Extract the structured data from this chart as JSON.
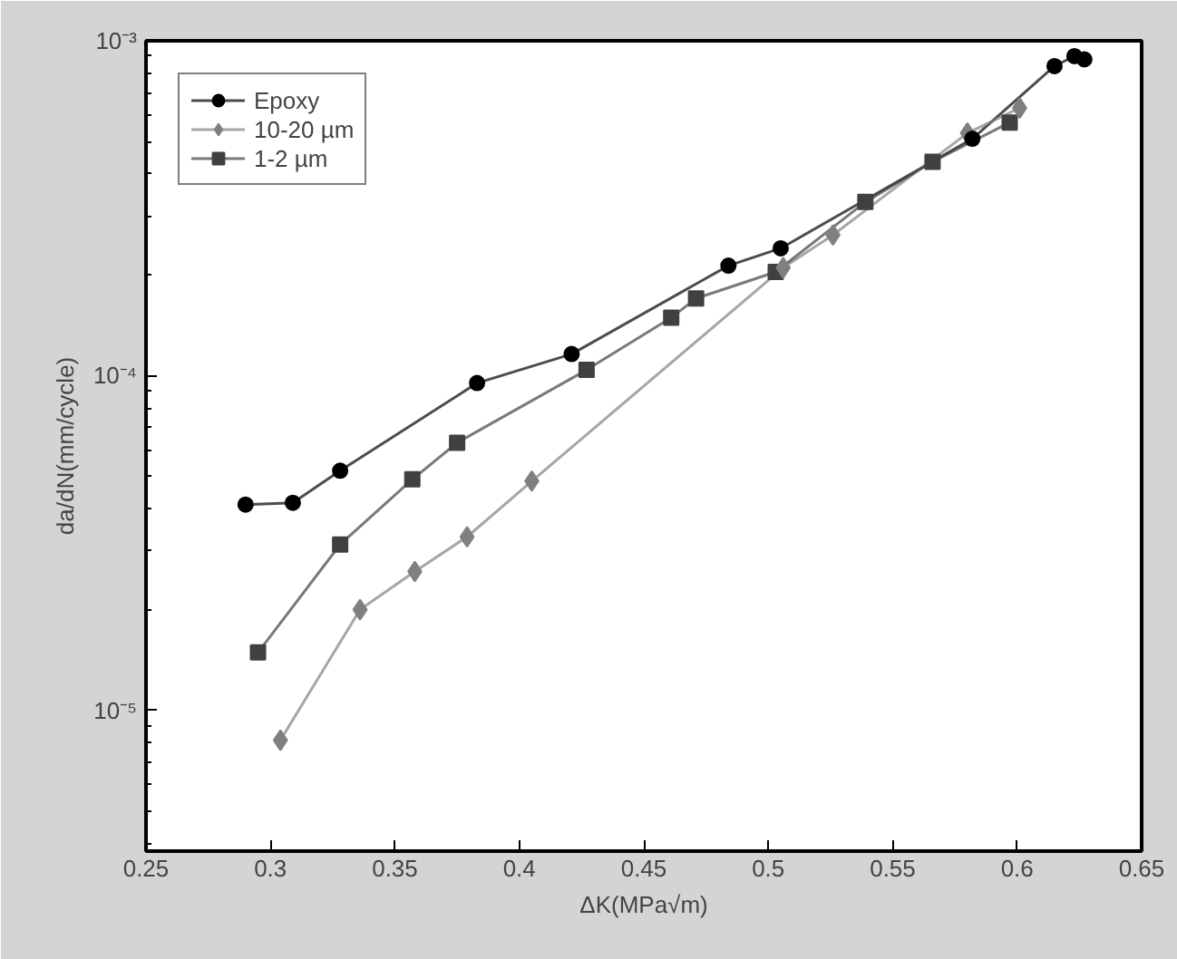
{
  "chart_data": {
    "type": "line",
    "xlabel": "ΔK(MPa√m)",
    "ylabel": "da/dN(mm/cycle)",
    "log": "y",
    "xlim": [
      0.25,
      0.65
    ],
    "xticks": [
      0.25,
      0.3,
      0.35,
      0.4,
      0.45,
      0.5,
      0.55,
      0.6,
      0.65
    ],
    "ylim": [
      3.8e-06,
      0.001
    ],
    "yticks": [
      {
        "value": 1e-05,
        "label": "10⁻⁵"
      },
      {
        "value": 0.0001,
        "label": "10⁻⁴"
      },
      {
        "value": 0.001,
        "label": "10⁻³"
      }
    ],
    "legend": "top left",
    "grid": false,
    "series": [
      {
        "name": "Epoxy",
        "color": "#000000",
        "marker": "circle",
        "x": [
          0.29,
          0.309,
          0.328,
          0.383,
          0.421,
          0.484,
          0.505,
          0.582,
          0.615,
          0.623,
          0.627
        ],
        "values": [
          4.12e-05,
          4.17e-05,
          5.2e-05,
          9.5e-05,
          0.000116,
          0.000213,
          0.00024,
          0.00051,
          0.00084,
          0.0009,
          0.00088
        ]
      },
      {
        "name": "10-20 µm",
        "color": "#808080",
        "marker": "diamond",
        "x": [
          0.304,
          0.336,
          0.358,
          0.379,
          0.405,
          0.506,
          0.526,
          0.58,
          0.601
        ],
        "values": [
          8.15e-06,
          2e-05,
          2.6e-05,
          3.3e-05,
          4.84e-05,
          0.00021,
          0.000263,
          0.00053,
          0.00063
        ]
      },
      {
        "name": "1-2 µm",
        "color": "#404040",
        "marker": "square",
        "x": [
          0.295,
          0.328,
          0.357,
          0.375,
          0.427,
          0.461,
          0.471,
          0.503,
          0.539,
          0.566,
          0.597
        ],
        "values": [
          1.49e-05,
          3.13e-05,
          4.9e-05,
          6.3e-05,
          0.000104,
          0.000149,
          0.00017,
          0.000204,
          0.00033,
          0.000435,
          0.00057
        ]
      }
    ]
  }
}
